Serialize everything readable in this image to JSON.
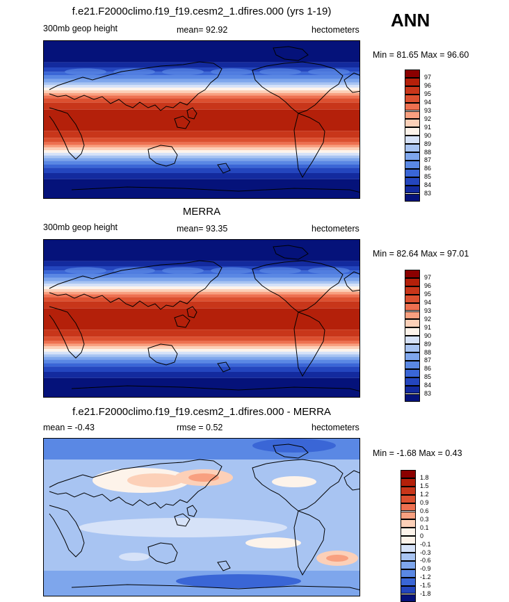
{
  "season": "ANN",
  "panels": [
    {
      "title": "f.e21.F2000climo.f19_f19.cesm2_1.dfires.000 (yrs 1-19)",
      "left": "300mb geop height",
      "center": "mean=  92.92",
      "right": "hectometers",
      "minmax": "Min =  81.65 Max =  96.60",
      "ticks": [
        "97",
        "96",
        "95",
        "94",
        "93",
        "92",
        "91",
        "90",
        "89",
        "88",
        "87",
        "86",
        "85",
        "84",
        "83"
      ],
      "colors": [
        "#8b0000",
        "#b4200a",
        "#c8361a",
        "#dc5030",
        "#ee7050",
        "#f8a080",
        "#fcd0b8",
        "#fdf3ea",
        "#d6e2f8",
        "#a8c4f2",
        "#7ea6ec",
        "#5a88e4",
        "#3a66d6",
        "#2446be",
        "#132a9e",
        "#05127a"
      ]
    },
    {
      "title": "MERRA",
      "left": "300mb geop height",
      "center": "mean=  93.35",
      "right": "hectometers",
      "minmax": "Min =  82.64 Max =  97.01",
      "ticks": [
        "97",
        "96",
        "95",
        "94",
        "93",
        "92",
        "91",
        "90",
        "89",
        "88",
        "87",
        "86",
        "85",
        "84",
        "83"
      ],
      "colors": [
        "#8b0000",
        "#b4200a",
        "#c8361a",
        "#dc5030",
        "#ee7050",
        "#f8a080",
        "#fcd0b8",
        "#fdf3ea",
        "#d6e2f8",
        "#a8c4f2",
        "#7ea6ec",
        "#5a88e4",
        "#3a66d6",
        "#2446be",
        "#132a9e",
        "#05127a"
      ]
    },
    {
      "title": "f.e21.F2000climo.f19_f19.cesm2_1.dfires.000 - MERRA",
      "left": "mean =  -0.43",
      "center": "rmse =   0.52",
      "right": "hectometers",
      "minmax": "Min =  -1.68 Max =   0.43",
      "ticks": [
        "1.8",
        "1.5",
        "1.2",
        "0.9",
        "0.6",
        "0.3",
        "0.1",
        "0",
        "-0.1",
        "-0.3",
        "-0.6",
        "-0.9",
        "-1.2",
        "-1.5",
        "-1.8"
      ],
      "colors": [
        "#8b0000",
        "#b4200a",
        "#c8361a",
        "#dc5030",
        "#ee7050",
        "#f8a080",
        "#fcd0b8",
        "#fdf3ea",
        "#fdf3ea",
        "#d6e2f8",
        "#a8c4f2",
        "#7ea6ec",
        "#5a88e4",
        "#3a66d6",
        "#2446be",
        "#05127a"
      ]
    }
  ]
}
